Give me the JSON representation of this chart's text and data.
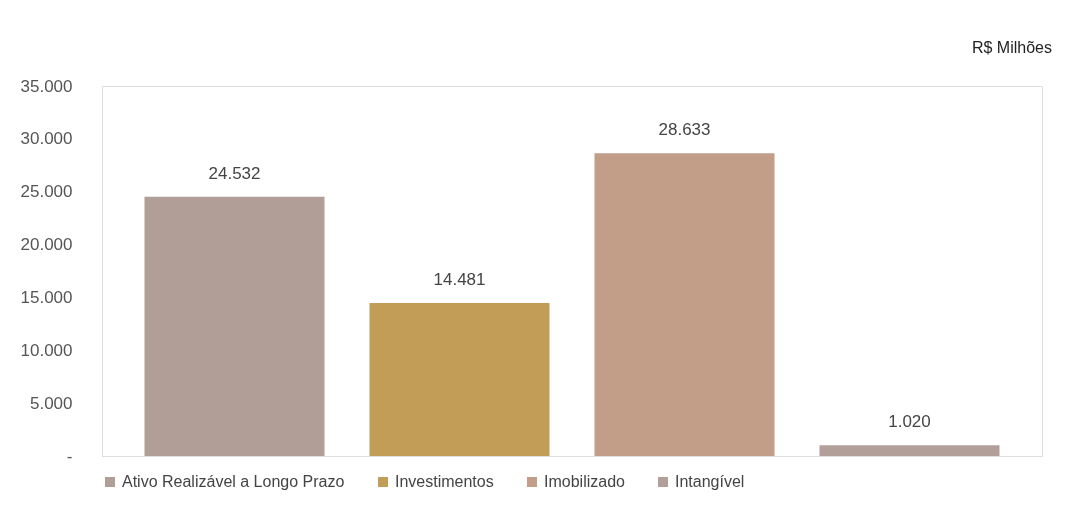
{
  "chart_data": {
    "type": "bar",
    "categories": [
      null
    ],
    "series": [
      {
        "name": "Ativo Realizável a Longo Prazo",
        "color": "#b09e97",
        "values": [
          24532
        ],
        "value_labels": [
          "24.532"
        ]
      },
      {
        "name": "Investimentos",
        "color": "#c19d58",
        "values": [
          14481
        ],
        "value_labels": [
          "14.481"
        ]
      },
      {
        "name": "Imobilizado",
        "color": "#c29d88",
        "values": [
          28633
        ],
        "value_labels": [
          "28.633"
        ]
      },
      {
        "name": "Intangível",
        "color": "#b29f99",
        "values": [
          1020
        ],
        "value_labels": [
          "1.020"
        ]
      }
    ],
    "ylim": [
      0,
      35000
    ],
    "yticks": [
      {
        "value": 0,
        "label": "-"
      },
      {
        "value": 5000,
        "label": "5.000"
      },
      {
        "value": 10000,
        "label": "10.000"
      },
      {
        "value": 15000,
        "label": "15.000"
      },
      {
        "value": 20000,
        "label": "20.000"
      },
      {
        "value": 25000,
        "label": "25.000"
      },
      {
        "value": 30000,
        "label": "30.000"
      },
      {
        "value": 35000,
        "label": "35.000"
      }
    ],
    "annotations": [
      "R$ Milhões"
    ],
    "legend": "bottom",
    "tick_labels": "y",
    "grid": false
  }
}
